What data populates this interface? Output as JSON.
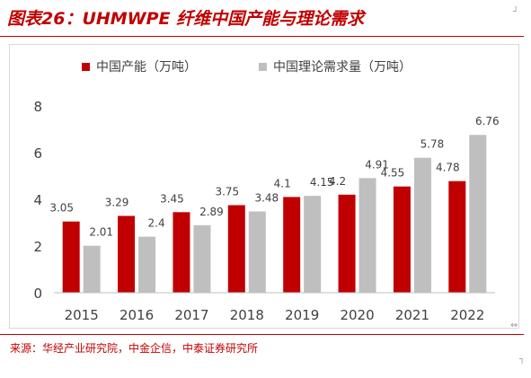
{
  "header": {
    "title": "图表26：UHMWPE 纤维中国产能与理论需求"
  },
  "footer": {
    "source": "来源：华经产业研究院，中金企信，中泰证券研究所"
  },
  "chart_data": {
    "type": "bar",
    "categories": [
      "2015",
      "2016",
      "2017",
      "2018",
      "2019",
      "2020",
      "2021",
      "2022"
    ],
    "series": [
      {
        "name": "中国产能（万吨）",
        "color": "#c00000",
        "values": [
          3.05,
          3.29,
          3.45,
          3.75,
          4.1,
          4.2,
          4.55,
          4.78
        ],
        "labels": [
          "3.05",
          "3.29",
          "3.45",
          "3.75",
          "4.1",
          "4.2",
          "4.55",
          "4.78"
        ]
      },
      {
        "name": "中国理论需求量（万吨）",
        "color": "#bfbfbf",
        "values": [
          2.01,
          2.4,
          2.89,
          3.48,
          4.15,
          4.91,
          5.78,
          6.76
        ],
        "labels": [
          "2.01",
          "2.4",
          "2.89",
          "3.48",
          "4.15",
          "4.91",
          "5.78",
          "6.76"
        ]
      }
    ],
    "yticks": [
      "0",
      "2",
      "4",
      "6",
      "8"
    ],
    "ylim": [
      0,
      8
    ],
    "grid": false,
    "legend_position": "top",
    "xlabel": "",
    "ylabel": ""
  }
}
